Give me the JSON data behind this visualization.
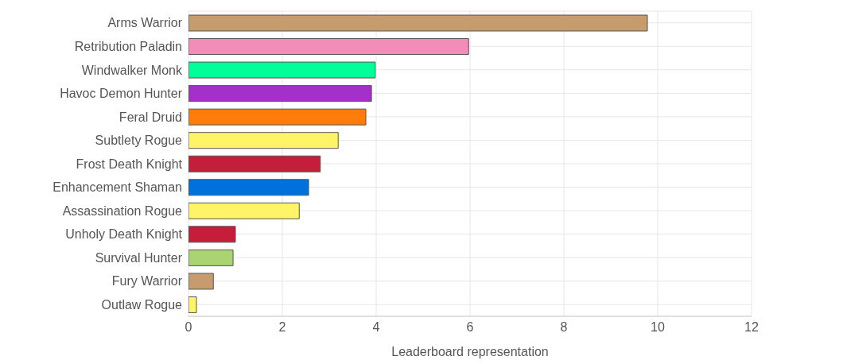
{
  "chart_data": {
    "type": "bar",
    "orientation": "horizontal",
    "xlabel": "Leaderboard representation",
    "categories": [
      "Arms Warrior",
      "Retribution Paladin",
      "Windwalker Monk",
      "Havoc Demon Hunter",
      "Feral Druid",
      "Subtlety Rogue",
      "Frost Death Knight",
      "Enhancement Shaman",
      "Assassination Rogue",
      "Unholy Death Knight",
      "Survival Hunter",
      "Fury Warrior",
      "Outlaw Rogue"
    ],
    "values": [
      9.78,
      5.97,
      3.98,
      3.9,
      3.78,
      3.19,
      2.81,
      2.56,
      2.36,
      1.0,
      0.95,
      0.53,
      0.17
    ],
    "colors": [
      "#c69b6d",
      "#f48cba",
      "#00ff98",
      "#a330c9",
      "#ff7c0a",
      "#fff468",
      "#c41e3a",
      "#0070dd",
      "#fff468",
      "#c41e3a",
      "#aad372",
      "#c69b6d",
      "#fff468"
    ],
    "xlim": [
      0,
      12
    ],
    "xticks": [
      0,
      2,
      4,
      6,
      8,
      10,
      12
    ],
    "grid": true
  }
}
